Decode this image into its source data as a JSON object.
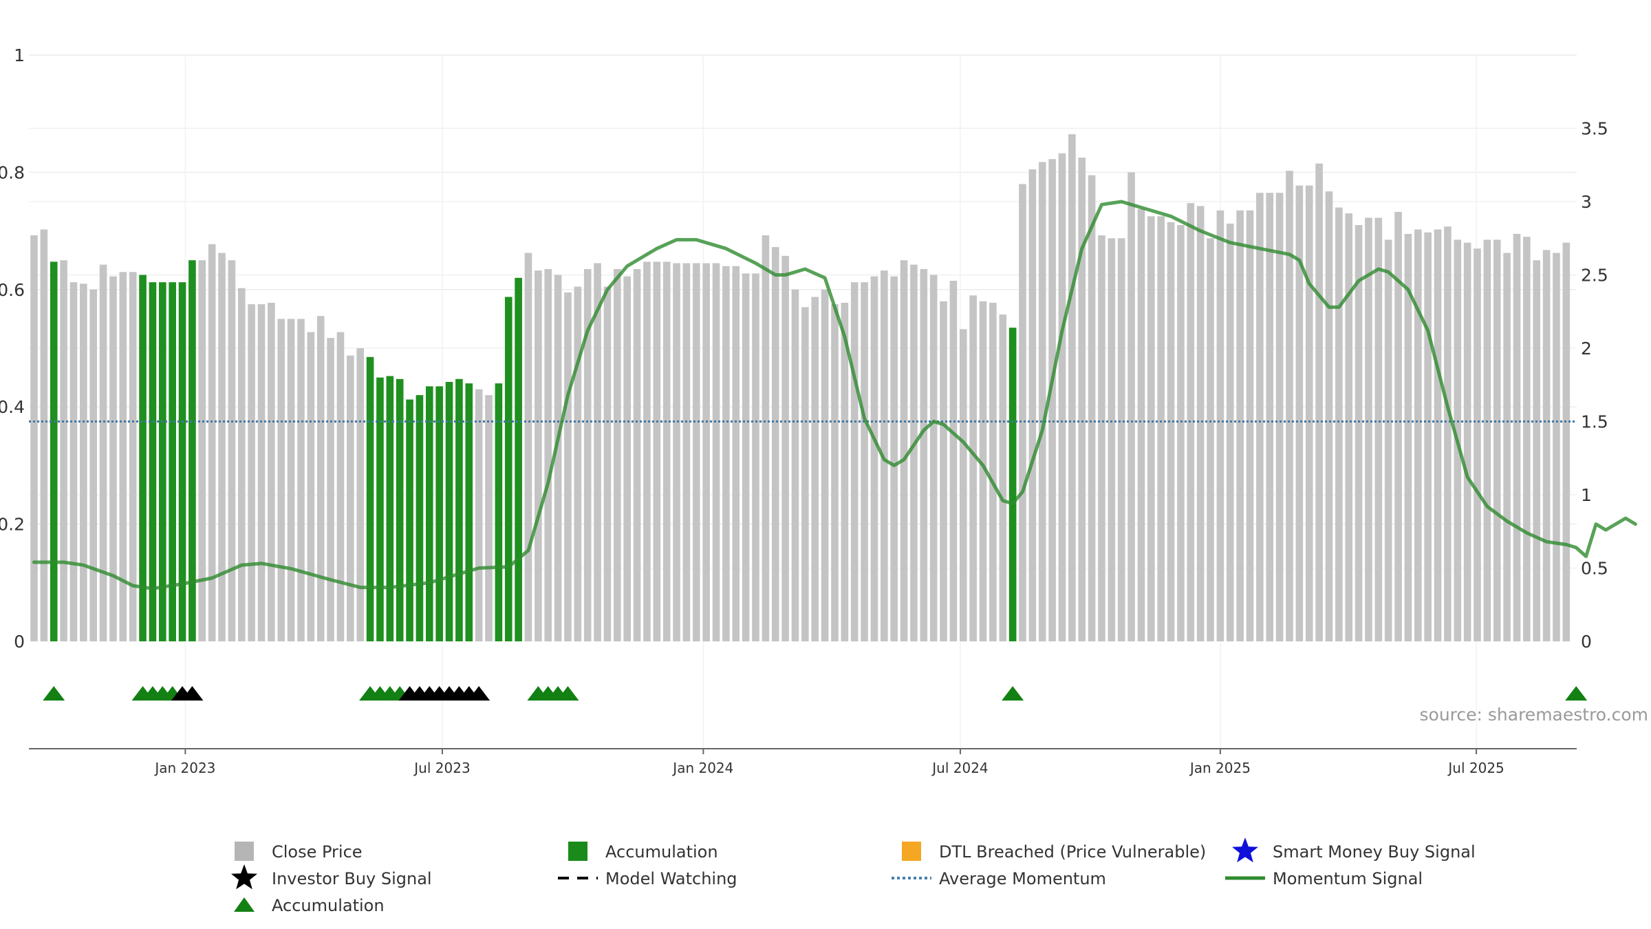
{
  "chart_data": {
    "type": "bar",
    "source": "source: sharemaestro.com",
    "y_left": {
      "min": 0,
      "max": 1,
      "ticks": [
        {
          "v": 0,
          "label": "0"
        },
        {
          "v": 0.2,
          "label": "0.2"
        },
        {
          "v": 0.4,
          "label": "0.4"
        },
        {
          "v": 0.6,
          "label": "0.6"
        },
        {
          "v": 0.8,
          "label": "0.8"
        },
        {
          "v": 1,
          "label": "1"
        }
      ]
    },
    "y_right": {
      "min": 0,
      "max": 4,
      "ticks": [
        {
          "v": 0,
          "label": "0"
        },
        {
          "v": 0.5,
          "label": "0.5"
        },
        {
          "v": 1,
          "label": "1"
        },
        {
          "v": 1.5,
          "label": "1.5"
        },
        {
          "v": 2,
          "label": "2"
        },
        {
          "v": 2.5,
          "label": "2.5"
        },
        {
          "v": 3,
          "label": "3"
        },
        {
          "v": 3.5,
          "label": "3.5"
        }
      ]
    },
    "x_axis": {
      "ticks": [
        {
          "index": 15.3,
          "label": "Jan 2023"
        },
        {
          "index": 41.3,
          "label": "Jul 2023"
        },
        {
          "index": 67.7,
          "label": "Jan 2024"
        },
        {
          "index": 93.7,
          "label": "Jul 2024"
        },
        {
          "index": 120.0,
          "label": "Jan 2025"
        },
        {
          "index": 145.9,
          "label": "Jul 2025"
        }
      ]
    },
    "close_price": [
      2.77,
      2.81,
      2.59,
      2.6,
      2.45,
      2.44,
      2.4,
      2.57,
      2.49,
      2.52,
      2.52,
      2.5,
      2.45,
      2.45,
      2.45,
      2.45,
      2.6,
      2.6,
      2.71,
      2.65,
      2.6,
      2.41,
      2.3,
      2.3,
      2.31,
      2.2,
      2.2,
      2.2,
      2.11,
      2.22,
      2.07,
      2.11,
      1.95,
      2.0,
      1.94,
      1.8,
      1.81,
      1.79,
      1.65,
      1.68,
      1.74,
      1.74,
      1.77,
      1.79,
      1.76,
      1.72,
      1.68,
      1.76,
      2.35,
      2.48,
      2.65,
      2.53,
      2.54,
      2.5,
      2.38,
      2.42,
      2.54,
      2.58,
      2.42,
      2.54,
      2.49,
      2.54,
      2.59,
      2.59,
      2.59,
      2.58,
      2.58,
      2.58,
      2.58,
      2.58,
      2.56,
      2.56,
      2.51,
      2.51,
      2.77,
      2.69,
      2.63,
      2.4,
      2.28,
      2.35,
      2.4,
      2.3,
      2.31,
      2.45,
      2.45,
      2.49,
      2.53,
      2.49,
      2.6,
      2.57,
      2.54,
      2.5,
      2.32,
      2.46,
      2.13,
      2.36,
      2.32,
      2.31,
      2.23,
      2.14,
      3.12,
      3.22,
      3.27,
      3.29,
      3.33,
      3.46,
      3.3,
      3.18,
      2.77,
      2.75,
      2.75,
      3.2,
      2.95,
      2.9,
      2.9,
      2.86,
      2.84,
      2.99,
      2.97,
      2.75,
      2.94,
      2.85,
      2.94,
      2.94,
      3.06,
      3.06,
      3.06,
      3.21,
      3.11,
      3.11,
      3.26,
      3.07,
      2.96,
      2.92,
      2.84,
      2.89,
      2.89,
      2.74,
      2.93,
      2.78,
      2.81,
      2.79,
      2.81,
      2.83,
      2.74,
      2.72,
      2.68,
      2.74,
      2.74,
      2.65,
      2.78,
      2.76,
      2.6,
      2.67,
      2.65,
      2.72
    ],
    "accumulation_bars": [
      2,
      11,
      12,
      13,
      14,
      15,
      16,
      34,
      35,
      36,
      37,
      38,
      39,
      40,
      41,
      42,
      43,
      44,
      47,
      48,
      49,
      99,
      156
    ],
    "accumulation_markers": [
      2,
      11,
      12,
      13,
      14,
      34,
      35,
      36,
      37,
      51,
      52,
      53,
      54,
      99,
      156
    ],
    "investor_buy_markers": [
      15,
      16,
      38,
      39,
      40,
      41,
      42,
      43,
      44,
      45
    ],
    "momentum_signal": [
      [
        0,
        0.135
      ],
      [
        3,
        0.135
      ],
      [
        5,
        0.13
      ],
      [
        8,
        0.112
      ],
      [
        10,
        0.095
      ],
      [
        12,
        0.09
      ],
      [
        15,
        0.098
      ],
      [
        18,
        0.108
      ],
      [
        21,
        0.13
      ],
      [
        23,
        0.133
      ],
      [
        26,
        0.124
      ],
      [
        30,
        0.105
      ],
      [
        33,
        0.092
      ],
      [
        36,
        0.092
      ],
      [
        40,
        0.1
      ],
      [
        43,
        0.115
      ],
      [
        45,
        0.125
      ],
      [
        48,
        0.127
      ],
      [
        50,
        0.155
      ],
      [
        52,
        0.27
      ],
      [
        54,
        0.42
      ],
      [
        56,
        0.53
      ],
      [
        58,
        0.6
      ],
      [
        60,
        0.64
      ],
      [
        63,
        0.67
      ],
      [
        65,
        0.685
      ],
      [
        67,
        0.685
      ],
      [
        70,
        0.67
      ],
      [
        73,
        0.645
      ],
      [
        75,
        0.625
      ],
      [
        76,
        0.625
      ],
      [
        78,
        0.635
      ],
      [
        80,
        0.62
      ],
      [
        82,
        0.52
      ],
      [
        84,
        0.38
      ],
      [
        86,
        0.31
      ],
      [
        87,
        0.3
      ],
      [
        88,
        0.31
      ],
      [
        90,
        0.36
      ],
      [
        91,
        0.375
      ],
      [
        92,
        0.37
      ],
      [
        94,
        0.34
      ],
      [
        96,
        0.3
      ],
      [
        98,
        0.24
      ],
      [
        99,
        0.235
      ],
      [
        100,
        0.255
      ],
      [
        102,
        0.36
      ],
      [
        104,
        0.53
      ],
      [
        106,
        0.67
      ],
      [
        108,
        0.745
      ],
      [
        110,
        0.75
      ],
      [
        112,
        0.74
      ],
      [
        115,
        0.725
      ],
      [
        118,
        0.7
      ],
      [
        121,
        0.68
      ],
      [
        124,
        0.67
      ],
      [
        127,
        0.66
      ],
      [
        128,
        0.65
      ],
      [
        129,
        0.61
      ],
      [
        131,
        0.57
      ],
      [
        132,
        0.57
      ],
      [
        134,
        0.615
      ],
      [
        136,
        0.635
      ],
      [
        137,
        0.63
      ],
      [
        139,
        0.6
      ],
      [
        141,
        0.53
      ],
      [
        143,
        0.4
      ],
      [
        145,
        0.28
      ],
      [
        147,
        0.23
      ],
      [
        149,
        0.205
      ],
      [
        151,
        0.185
      ],
      [
        153,
        0.17
      ],
      [
        155,
        0.165
      ],
      [
        156,
        0.16
      ],
      [
        157,
        0.145
      ],
      [
        158,
        0.2
      ],
      [
        159,
        0.19
      ],
      [
        160,
        0.2
      ],
      [
        161,
        0.21
      ],
      [
        162,
        0.2
      ]
    ],
    "average_momentum": 0.375,
    "legend": [
      {
        "label": "Close Price",
        "type": "square",
        "color": "#b5b5b5"
      },
      {
        "label": "Accumulation",
        "type": "square",
        "color": "#1a8a1a"
      },
      {
        "label": "DTL Breached (Price Vulnerable)",
        "type": "square",
        "color": "#f5a623"
      },
      {
        "label": "Smart Money Buy Signal",
        "type": "star",
        "color": "#1010d8"
      },
      {
        "label": "Investor Buy Signal",
        "type": "star",
        "color": "#000000"
      },
      {
        "label": "Model Watching",
        "type": "dash",
        "color": "#000000"
      },
      {
        "label": "Average Momentum",
        "type": "dotted",
        "color": "#4a7fa8"
      },
      {
        "label": "Momentum Signal",
        "type": "line",
        "color": "#2e8b2e"
      },
      {
        "label": "Accumulation",
        "type": "triangle",
        "color": "#138013"
      }
    ]
  }
}
